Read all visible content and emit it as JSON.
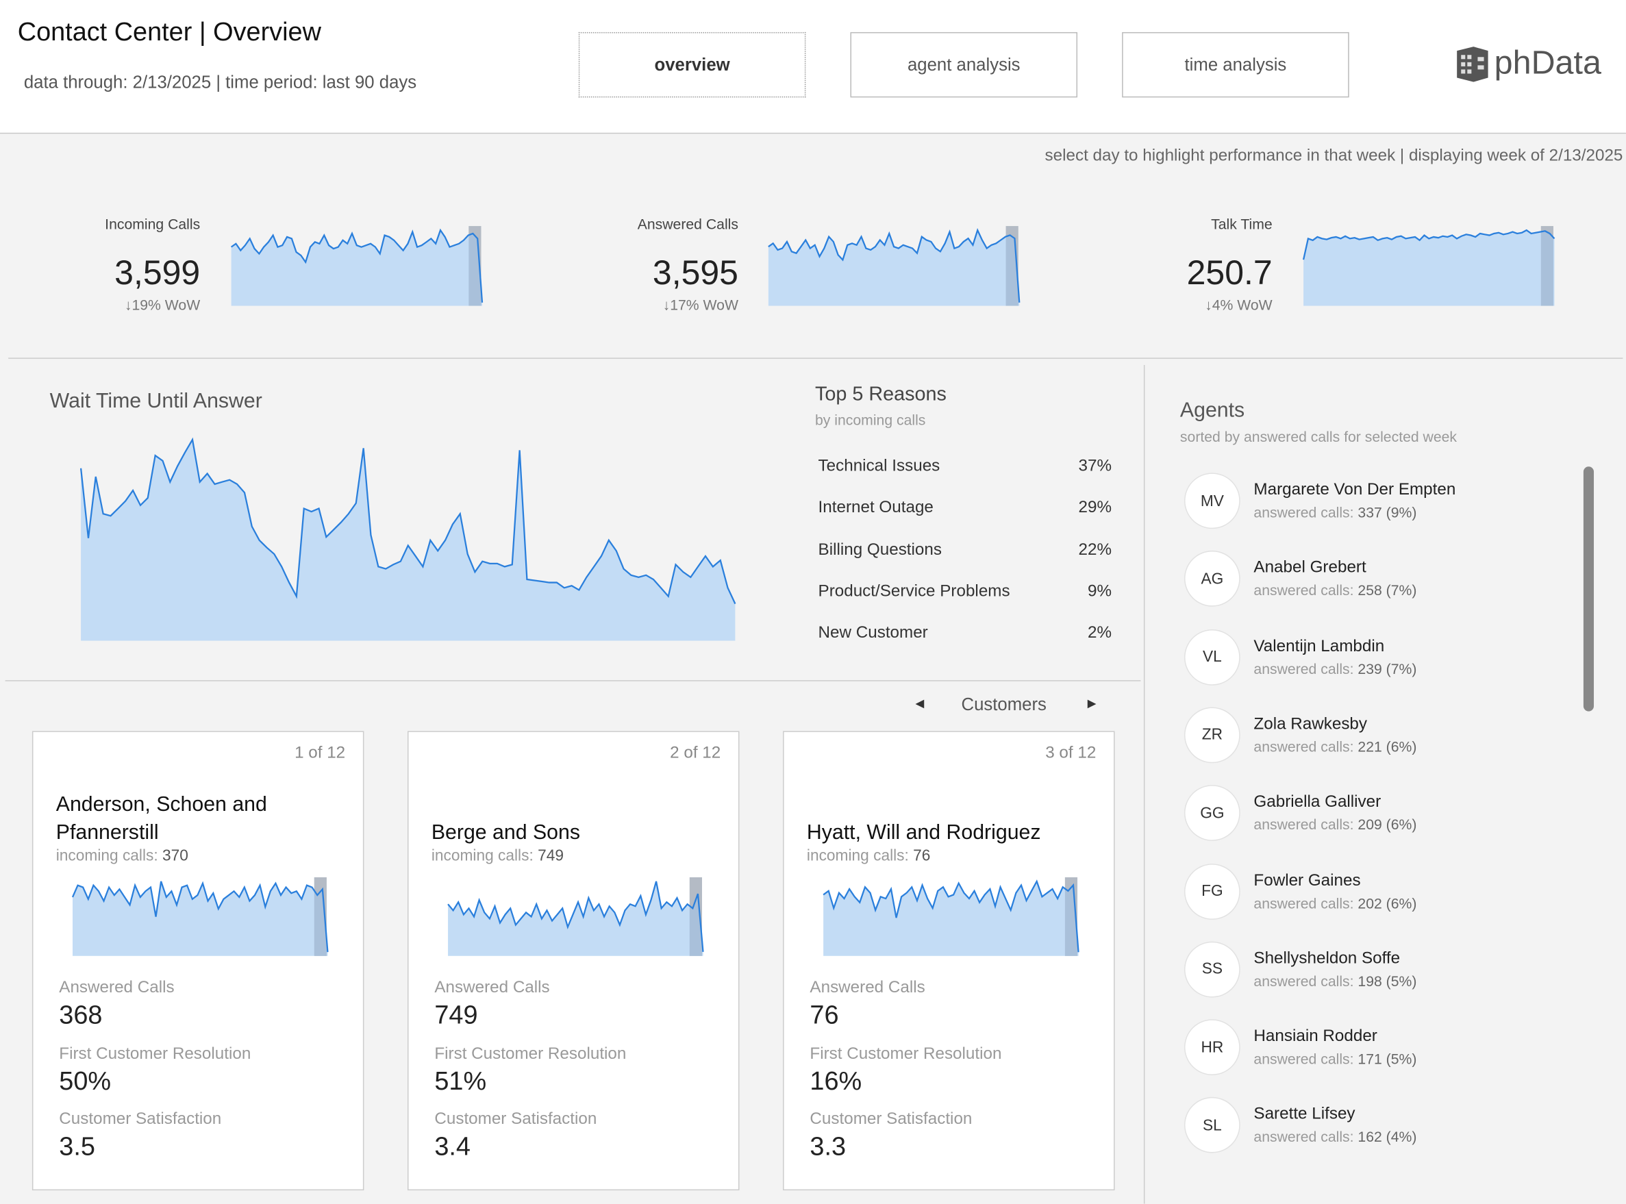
{
  "header": {
    "title": "Contact Center | Overview",
    "subtitle": "data through: 2/13/2025 | time period: last 90 days",
    "tabs": [
      "overview",
      "agent analysis",
      "time analysis"
    ],
    "logo": "phData"
  },
  "note": "select day to highlight performance in that week | displaying week of 2/13/2025",
  "kpis": [
    {
      "label": "Incoming Calls",
      "value": "3,599",
      "change": "↓19% WoW",
      "spark": [
        70,
        74,
        66,
        72,
        80,
        68,
        62,
        70,
        76,
        84,
        70,
        72,
        82,
        80,
        64,
        60,
        52,
        70,
        76,
        74,
        84,
        72,
        68,
        70,
        78,
        74,
        86,
        72,
        70,
        72,
        74,
        70,
        62,
        84,
        82,
        78,
        72,
        66,
        74,
        88,
        70,
        72,
        76,
        80,
        74,
        90,
        82,
        70,
        72,
        74,
        78,
        84,
        86,
        80,
        4
      ]
    },
    {
      "label": "Answered Calls",
      "value": "3,595",
      "change": "↓17% WoW",
      "spark": [
        72,
        76,
        68,
        70,
        78,
        66,
        64,
        72,
        80,
        70,
        74,
        60,
        70,
        84,
        78,
        62,
        56,
        74,
        76,
        74,
        84,
        70,
        68,
        72,
        80,
        74,
        88,
        72,
        70,
        74,
        72,
        70,
        64,
        84,
        80,
        78,
        70,
        66,
        76,
        90,
        70,
        72,
        78,
        82,
        74,
        92,
        80,
        70,
        74,
        76,
        80,
        84,
        86,
        82,
        4
      ]
    },
    {
      "label": "Talk Time",
      "value": "250.7",
      "change": "↓4% WoW",
      "spark": [
        55,
        80,
        78,
        82,
        80,
        79,
        81,
        82,
        80,
        83,
        80,
        81,
        79,
        80,
        81,
        82,
        78,
        80,
        81,
        79,
        82,
        83,
        80,
        81,
        82,
        78,
        84,
        80,
        82,
        81,
        83,
        82,
        84,
        80,
        83,
        85,
        84,
        82,
        86,
        85,
        84,
        86,
        87,
        85,
        86,
        88,
        86,
        87,
        90,
        86,
        87,
        88,
        89,
        86,
        80
      ]
    }
  ],
  "wait_time": {
    "title": "Wait Time Until Answer",
    "values": [
      163,
      97,
      155,
      120,
      118,
      125,
      132,
      142,
      128,
      135,
      175,
      170,
      150,
      165,
      178,
      190,
      150,
      158,
      148,
      150,
      152,
      148,
      140,
      108,
      95,
      88,
      82,
      70,
      55,
      42,
      125,
      122,
      125,
      98,
      105,
      112,
      120,
      130,
      182,
      100,
      70,
      68,
      72,
      75,
      90,
      80,
      70,
      95,
      85,
      95,
      110,
      120,
      82,
      65,
      75,
      73,
      73,
      70,
      72,
      180,
      58,
      57,
      56,
      55,
      55,
      50,
      52,
      48,
      60,
      70,
      80,
      95,
      85,
      68,
      62,
      60,
      62,
      58,
      50,
      42,
      72,
      65,
      60,
      70,
      80,
      70,
      76,
      50,
      35
    ]
  },
  "reasons": {
    "title": "Top 5 Reasons",
    "subtitle": "by incoming calls",
    "items": [
      {
        "name": "Technical Issues",
        "pct": "37%"
      },
      {
        "name": "Internet Outage",
        "pct": "29%"
      },
      {
        "name": "Billing Questions",
        "pct": "22%"
      },
      {
        "name": "Product/Service Problems",
        "pct": "9%"
      },
      {
        "name": "New Customer",
        "pct": "2%"
      }
    ]
  },
  "customers": {
    "nav": "Customers",
    "cards": [
      {
        "page": "1 of 12",
        "name": "Anderson, Schoen and Pfannerstill",
        "incoming_label": "incoming calls:",
        "incoming": "370",
        "spark": [
          60,
          72,
          70,
          58,
          72,
          66,
          56,
          70,
          62,
          68,
          60,
          52,
          72,
          60,
          66,
          70,
          40,
          76,
          60,
          66,
          52,
          70,
          72,
          58,
          62,
          74,
          56,
          64,
          48,
          58,
          62,
          66,
          60,
          70,
          56,
          62,
          72,
          50,
          66,
          74,
          62,
          70,
          64,
          66,
          58,
          72,
          70,
          62,
          68,
          4
        ],
        "metrics": [
          {
            "label": "Answered Calls",
            "value": "368"
          },
          {
            "label": "First Customer Resolution",
            "value": "50%"
          },
          {
            "label": "Customer Satisfaction",
            "value": "3.5"
          }
        ]
      },
      {
        "page": "2 of 12",
        "name": "Berge and Sons",
        "incoming_label": "incoming calls:",
        "incoming": "749",
        "spark": [
          50,
          44,
          52,
          40,
          46,
          38,
          54,
          42,
          36,
          48,
          32,
          40,
          46,
          30,
          36,
          42,
          38,
          50,
          36,
          44,
          34,
          40,
          46,
          28,
          40,
          52,
          38,
          56,
          44,
          50,
          38,
          48,
          42,
          30,
          44,
          50,
          48,
          58,
          40,
          54,
          72,
          46,
          52,
          48,
          56,
          44,
          50,
          46,
          60,
          4
        ],
        "metrics": [
          {
            "label": "Answered Calls",
            "value": "749"
          },
          {
            "label": "First Customer Resolution",
            "value": "51%"
          },
          {
            "label": "Customer Satisfaction",
            "value": "3.4"
          }
        ]
      },
      {
        "page": "3 of 12",
        "name": "Hyatt, Will and Rodriguez",
        "incoming_label": "incoming calls:",
        "incoming": "76",
        "spark": [
          64,
          68,
          50,
          66,
          60,
          70,
          62,
          56,
          72,
          66,
          48,
          62,
          60,
          70,
          40,
          62,
          66,
          72,
          58,
          74,
          60,
          50,
          68,
          72,
          62,
          64,
          76,
          66,
          60,
          68,
          56,
          64,
          70,
          52,
          72,
          60,
          48,
          66,
          74,
          58,
          68,
          78,
          62,
          66,
          70,
          60,
          72,
          68,
          74,
          4
        ],
        "metrics": [
          {
            "label": "Answered Calls",
            "value": "76"
          },
          {
            "label": "First Customer Resolution",
            "value": "16%"
          },
          {
            "label": "Customer Satisfaction",
            "value": "3.3"
          }
        ]
      }
    ]
  },
  "agents": {
    "title": "Agents",
    "subtitle": "sorted by answered calls for selected week",
    "detail_label": "answered calls:",
    "list": [
      {
        "initials": "MV",
        "name": "Margarete Von Der Empten",
        "detail": "337 (9%)"
      },
      {
        "initials": "AG",
        "name": "Anabel Grebert",
        "detail": "258 (7%)"
      },
      {
        "initials": "VL",
        "name": "Valentijn Lambdin",
        "detail": "239 (7%)"
      },
      {
        "initials": "ZR",
        "name": "Zola Rawkesby",
        "detail": "221 (6%)"
      },
      {
        "initials": "GG",
        "name": "Gabriella Galliver",
        "detail": "209 (6%)"
      },
      {
        "initials": "FG",
        "name": "Fowler Gaines",
        "detail": "202 (6%)"
      },
      {
        "initials": "SS",
        "name": "Shellysheldon Soffe",
        "detail": "198 (5%)"
      },
      {
        "initials": "HR",
        "name": "Hansiain Rodder",
        "detail": "171 (5%)"
      },
      {
        "initials": "SL",
        "name": "Sarette Lifsey",
        "detail": "162 (4%)"
      }
    ]
  }
}
